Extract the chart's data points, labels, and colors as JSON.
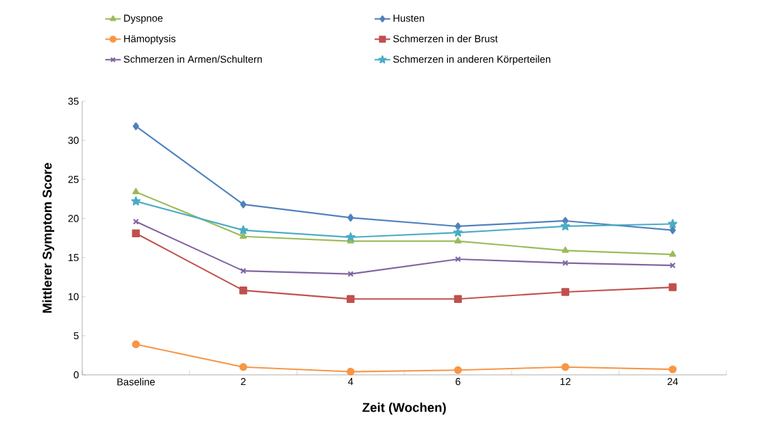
{
  "chart_data": {
    "type": "line",
    "xlabel": "Zeit (Wochen)",
    "ylabel": "Mittlerer Symptom Score",
    "categories": [
      "Baseline",
      "2",
      "4",
      "6",
      "12",
      "24"
    ],
    "ylim": [
      0,
      35
    ],
    "yticks": [
      0,
      5,
      10,
      15,
      20,
      25,
      30,
      35
    ],
    "grid": false,
    "legend": "top",
    "series": [
      {
        "name": "Dyspnoe",
        "color": "#9bbb59",
        "marker": "triangle",
        "values": [
          23.4,
          17.7,
          17.1,
          17.1,
          15.9,
          15.4
        ]
      },
      {
        "name": "Husten",
        "color": "#4f81bd",
        "marker": "diamond",
        "values": [
          31.8,
          21.8,
          20.1,
          19.0,
          19.7,
          18.5
        ]
      },
      {
        "name": "Hämoptysis",
        "color": "#f79646",
        "marker": "circle",
        "values": [
          3.9,
          1.0,
          0.4,
          0.6,
          1.0,
          0.7
        ]
      },
      {
        "name": "Schmerzen in der Brust",
        "color": "#c0504d",
        "marker": "square",
        "values": [
          18.1,
          10.8,
          9.7,
          9.7,
          10.6,
          11.2
        ]
      },
      {
        "name": "Schmerzen in Armen/Schultern",
        "color": "#8064a2",
        "marker": "cross",
        "values": [
          19.6,
          13.3,
          12.9,
          14.8,
          14.3,
          14.0
        ]
      },
      {
        "name": "Schmerzen in anderen Körperteilen",
        "color": "#4bacc6",
        "marker": "star",
        "values": [
          22.2,
          18.5,
          17.6,
          18.2,
          19.0,
          19.3
        ]
      }
    ]
  }
}
